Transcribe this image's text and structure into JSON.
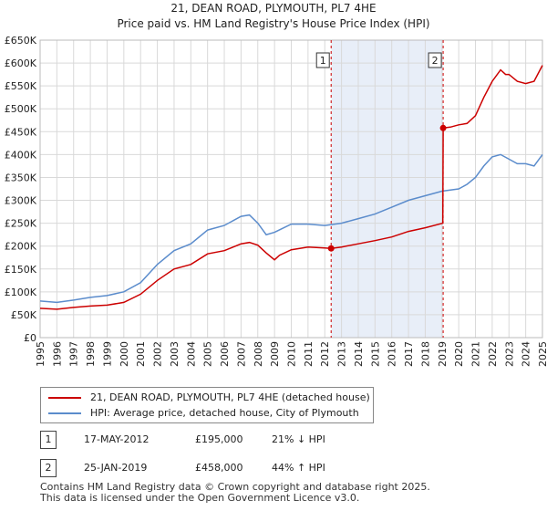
{
  "title": "21, DEAN ROAD, PLYMOUTH, PL7 4HE",
  "subtitle": "Price paid vs. HM Land Registry's House Price Index (HPI)",
  "colors": {
    "property": "#cc0000",
    "hpi": "#5b8ccc",
    "shade": "#e8eef8",
    "grid": "#d9d9d9"
  },
  "chart_data": {
    "type": "line",
    "title": "Price paid vs. HM Land Registry's House Price Index (HPI)",
    "xlim": [
      1995,
      2025
    ],
    "ylim": [
      0,
      650000
    ],
    "x_ticks": [
      "1995",
      "1996",
      "1997",
      "1998",
      "1999",
      "2000",
      "2001",
      "2002",
      "2003",
      "2004",
      "2005",
      "2006",
      "2007",
      "2008",
      "2009",
      "2010",
      "2011",
      "2012",
      "2013",
      "2014",
      "2015",
      "2016",
      "2017",
      "2018",
      "2019",
      "2020",
      "2021",
      "2022",
      "2023",
      "2024",
      "2025"
    ],
    "y_ticks": [
      {
        "value": 0,
        "label": "£0"
      },
      {
        "value": 50000,
        "label": "£50K"
      },
      {
        "value": 100000,
        "label": "£100K"
      },
      {
        "value": 150000,
        "label": "£150K"
      },
      {
        "value": 200000,
        "label": "£200K"
      },
      {
        "value": 250000,
        "label": "£250K"
      },
      {
        "value": 300000,
        "label": "£300K"
      },
      {
        "value": 350000,
        "label": "£350K"
      },
      {
        "value": 400000,
        "label": "£400K"
      },
      {
        "value": 450000,
        "label": "£450K"
      },
      {
        "value": 500000,
        "label": "£500K"
      },
      {
        "value": 550000,
        "label": "£550K"
      },
      {
        "value": 600000,
        "label": "£600K"
      },
      {
        "value": 650000,
        "label": "£650K"
      }
    ],
    "shaded_range": [
      2012.38,
      2019.07
    ],
    "series": [
      {
        "name": "21, DEAN ROAD, PLYMOUTH, PL7 4HE (detached house)",
        "color": "#cc0000",
        "x": [
          1995,
          1996,
          1997,
          1998,
          1999,
          2000,
          2001,
          2002,
          2003,
          2004,
          2005,
          2006,
          2007,
          2007.5,
          2008,
          2008.5,
          2009,
          2009.3,
          2010,
          2011,
          2012,
          2012.38,
          2013,
          2014,
          2015,
          2016,
          2017,
          2018,
          2019.05,
          2019.07,
          2019.5,
          2020,
          2020.5,
          2021,
          2021.5,
          2022,
          2022.5,
          2022.8,
          2023,
          2023.5,
          2024,
          2024.5,
          2025
        ],
        "y": [
          64000,
          62000,
          66000,
          69000,
          71000,
          77000,
          95000,
          125000,
          150000,
          160000,
          183000,
          190000,
          205000,
          208000,
          202000,
          185000,
          170000,
          180000,
          192000,
          198000,
          196000,
          195000,
          198000,
          205000,
          212000,
          220000,
          232000,
          240000,
          250000,
          458000,
          460000,
          465000,
          468000,
          485000,
          525000,
          560000,
          585000,
          575000,
          575000,
          560000,
          555000,
          560000,
          595000
        ]
      },
      {
        "name": "HPI: Average price, detached house, City of Plymouth",
        "color": "#5b8ccc",
        "x": [
          1995,
          1996,
          1997,
          1998,
          1999,
          2000,
          2001,
          2002,
          2003,
          2004,
          2005,
          2006,
          2007,
          2007.5,
          2008,
          2008.5,
          2009,
          2010,
          2011,
          2012,
          2013,
          2014,
          2015,
          2016,
          2017,
          2018,
          2019,
          2020,
          2020.5,
          2021,
          2021.5,
          2022,
          2022.5,
          2023,
          2023.5,
          2024,
          2024.5,
          2025
        ],
        "y": [
          80000,
          77000,
          82000,
          88000,
          92000,
          100000,
          120000,
          160000,
          190000,
          205000,
          235000,
          245000,
          265000,
          268000,
          250000,
          225000,
          230000,
          248000,
          248000,
          245000,
          250000,
          260000,
          270000,
          285000,
          300000,
          310000,
          320000,
          325000,
          335000,
          350000,
          375000,
          395000,
          400000,
          390000,
          380000,
          380000,
          375000,
          400000
        ]
      }
    ],
    "annotations": [
      {
        "label": "1",
        "x": 2012.38,
        "y": 195000
      },
      {
        "label": "2",
        "x": 2019.07,
        "y": 458000
      }
    ]
  },
  "legend": {
    "property_label": "21, DEAN ROAD, PLYMOUTH, PL7 4HE (detached house)",
    "hpi_label": "HPI: Average price, detached house, City of Plymouth"
  },
  "transactions": [
    {
      "num": "1",
      "date": "17-MAY-2012",
      "price": "£195,000",
      "hpi": "21% ↓ HPI"
    },
    {
      "num": "2",
      "date": "25-JAN-2019",
      "price": "£458,000",
      "hpi": "44% ↑ HPI"
    }
  ],
  "footer": {
    "line1": "Contains HM Land Registry data © Crown copyright and database right 2025.",
    "line2": "This data is licensed under the Open Government Licence v3.0."
  }
}
